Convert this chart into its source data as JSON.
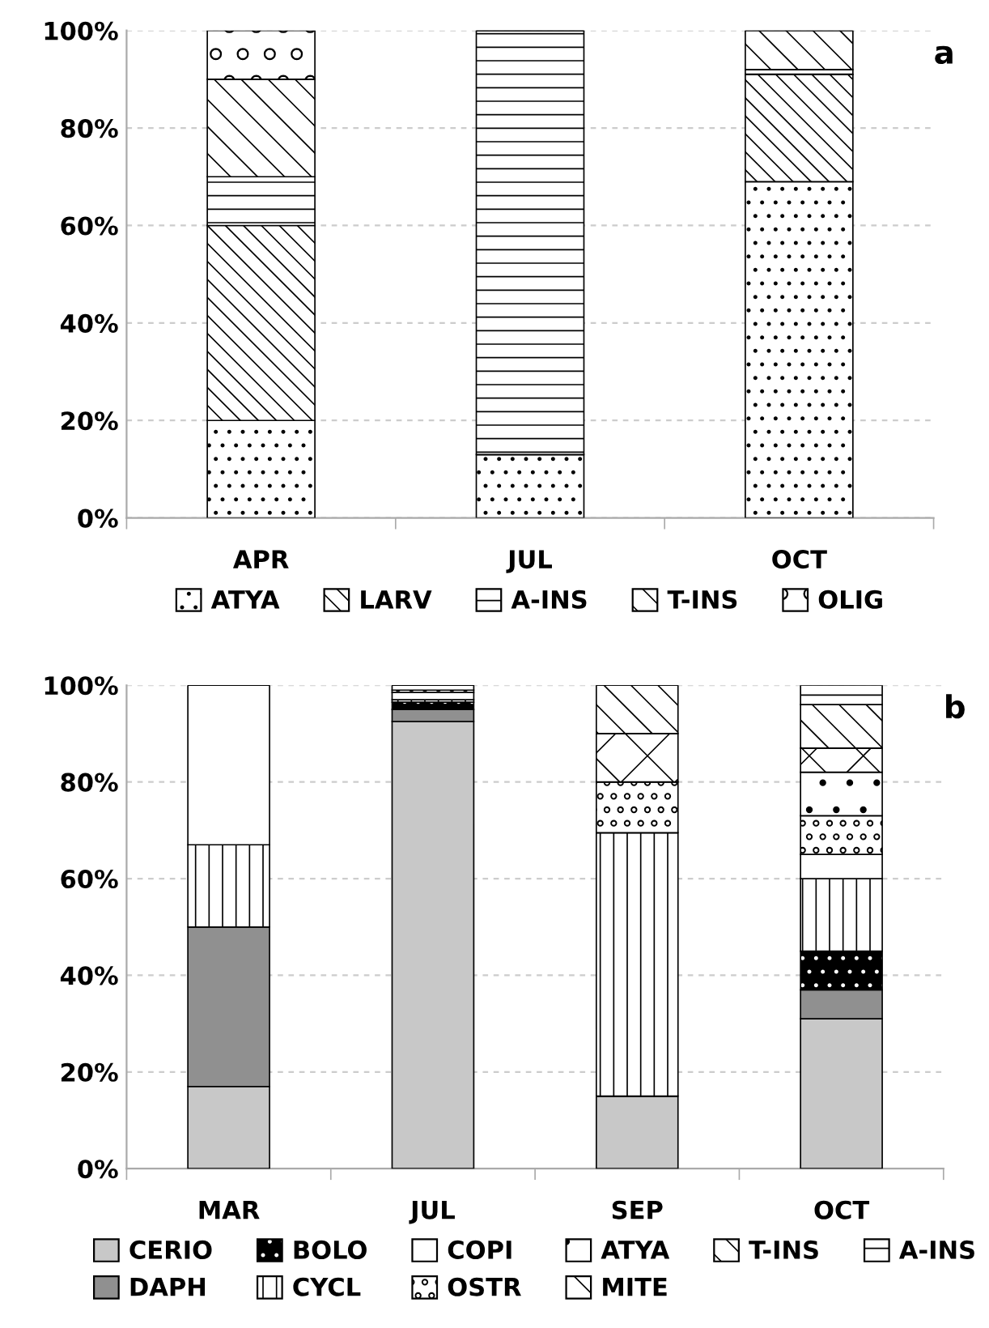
{
  "chart_data": [
    {
      "type": "bar",
      "stacked": true,
      "categories": [
        "APR",
        "JUL",
        "OCT"
      ],
      "series": [
        {
          "name": "ATYA",
          "color": "#000000",
          "values": [
            20,
            13,
            69
          ]
        },
        {
          "name": "LARV",
          "color": "#000000",
          "values": [
            40,
            0,
            22
          ]
        },
        {
          "name": "A-INS",
          "color": "#000000",
          "values": [
            10,
            87,
            1
          ]
        },
        {
          "name": "T-INS",
          "color": "#000000",
          "values": [
            20,
            0,
            8
          ]
        },
        {
          "name": "OLIG",
          "color": "#000000",
          "values": [
            10,
            0,
            0
          ]
        }
      ],
      "ylim": [
        0,
        100
      ],
      "yticks": [
        {
          "value": 0,
          "label": "0%"
        },
        {
          "value": 20,
          "label": "20%"
        },
        {
          "value": 40,
          "label": "40%"
        },
        {
          "value": 60,
          "label": "60%"
        },
        {
          "value": 80,
          "label": "80%"
        },
        {
          "value": 100,
          "label": "100%"
        }
      ],
      "grid": "y",
      "legend": "bottom",
      "annotations": [
        "a"
      ]
    },
    {
      "type": "bar",
      "stacked": true,
      "categories": [
        "MAR",
        "JUL",
        "SEP",
        "OCT"
      ],
      "series": [
        {
          "name": "CERIO",
          "color": "#c8c8c8",
          "values": [
            17,
            92.5,
            15,
            31
          ]
        },
        {
          "name": "DAPH",
          "color": "#909090",
          "values": [
            33,
            2.5,
            0,
            6
          ]
        },
        {
          "name": "BOLO",
          "color": "#000000",
          "values": [
            0,
            1.5,
            0,
            8
          ]
        },
        {
          "name": "CYCL",
          "color": "#000000",
          "values": [
            17,
            0.5,
            54.5,
            15
          ]
        },
        {
          "name": "COPI",
          "color": "#ffffff",
          "values": [
            33,
            1.5,
            0,
            5
          ]
        },
        {
          "name": "OSTR",
          "color": "#000000",
          "values": [
            0,
            0.5,
            10.5,
            8
          ]
        },
        {
          "name": "ATYA",
          "color": "#000000",
          "values": [
            0,
            1,
            0,
            9
          ]
        },
        {
          "name": "MITE",
          "color": "#000000",
          "values": [
            0,
            0,
            10,
            5
          ]
        },
        {
          "name": "T-INS",
          "color": "#000000",
          "values": [
            0,
            0,
            10,
            9
          ]
        },
        {
          "name": "A-INS",
          "color": "#000000",
          "values": [
            0,
            0,
            0,
            4
          ]
        }
      ],
      "ylim": [
        0,
        100
      ],
      "yticks": [
        {
          "value": 0,
          "label": "0%"
        },
        {
          "value": 20,
          "label": "20%"
        },
        {
          "value": 40,
          "label": "40%"
        },
        {
          "value": 60,
          "label": "60%"
        },
        {
          "value": 80,
          "label": "80%"
        },
        {
          "value": 100,
          "label": "100%"
        }
      ],
      "grid": "y",
      "legend": "bottom",
      "annotations": [
        "b"
      ]
    }
  ]
}
